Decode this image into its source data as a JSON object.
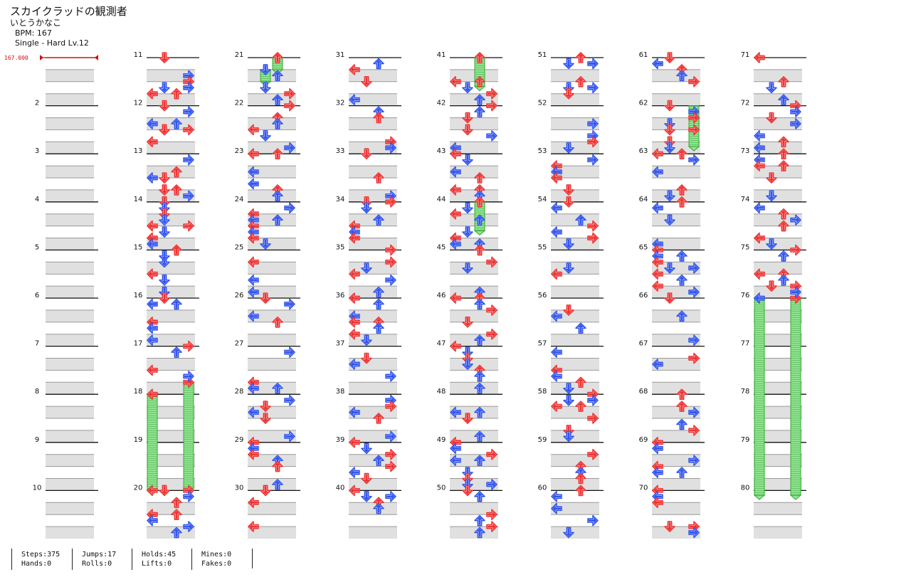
{
  "header": {
    "title": "スカイクラッドの観測者",
    "artist": "いとうかなこ",
    "bpm_text": "BPM: 167",
    "difficulty_text": "Single - Hard  Lv.12"
  },
  "bpm_marker": {
    "value": "167.000"
  },
  "colors": {
    "red_note": "#ee3333",
    "blue_note": "#3355ee",
    "hold_fill": "#88e088",
    "hold_border": "#33aa33",
    "bpm_marker": "#d01010"
  },
  "measure_numbers": [
    "2",
    "3",
    "4",
    "5",
    "6",
    "7",
    "8",
    "9",
    "10",
    "11",
    "12",
    "13",
    "14",
    "15",
    "16",
    "17",
    "18",
    "19",
    "20",
    "21",
    "22",
    "23",
    "24",
    "25",
    "26",
    "27",
    "28",
    "29",
    "30",
    "31",
    "32",
    "33",
    "34",
    "35",
    "36",
    "37",
    "38",
    "39",
    "40",
    "41",
    "42",
    "43",
    "44",
    "45",
    "46",
    "47",
    "48",
    "49",
    "50",
    "51",
    "52",
    "53",
    "54",
    "55",
    "56",
    "57",
    "58",
    "59",
    "60",
    "61",
    "62",
    "63",
    "64",
    "65",
    "66",
    "67",
    "68",
    "69",
    "70",
    "71",
    "72",
    "73",
    "74",
    "75",
    "76",
    "77",
    "78",
    "79",
    "80"
  ],
  "stats": [
    {
      "line1": "Steps:375",
      "line2": "Hands:0"
    },
    {
      "line1": "Jumps:17",
      "line2": "Rolls:0"
    },
    {
      "line1": "Holds:45",
      "line2": "Lifts:0"
    },
    {
      "line1": "Mines:0",
      "line2": "Fakes:0"
    }
  ],
  "chart_data": {
    "type": "table",
    "columns": [
      "left",
      "down",
      "up",
      "right"
    ],
    "notes": [
      {
        "measure": 13,
        "beat": 2,
        "lane": 0,
        "color": "blue"
      },
      {
        "measure": 13,
        "beat": 1.5,
        "lane": 2,
        "color": "red"
      },
      {
        "measure": 13,
        "beat": 3,
        "lane": 2,
        "color": "red"
      },
      {
        "measure": 13,
        "beat": 0.5,
        "lane": 3,
        "color": "blue"
      },
      {
        "measure": 12,
        "beat": 1.5,
        "lane": 0,
        "color": "blue"
      },
      {
        "measure": 12,
        "beat": 0,
        "lane": 1,
        "color": "red"
      },
      {
        "measure": 12,
        "beat": 2,
        "lane": 1,
        "color": "red"
      },
      {
        "measure": 12,
        "beat": 0.5,
        "lane": 3,
        "color": "blue"
      },
      {
        "measure": 14,
        "beat": 0,
        "lane": 1,
        "color": "blue"
      },
      {
        "measure": 14,
        "beat": 2,
        "lane": 3,
        "color": "red"
      },
      {
        "measure": 15,
        "beat": 0,
        "lane": 2,
        "color": "red"
      },
      {
        "measure": 15,
        "beat": 1,
        "lane": 1,
        "color": "blue"
      },
      {
        "measure": 18,
        "beat": 0,
        "lane": 0,
        "color": "red",
        "hold_end": 20
      },
      {
        "measure": 17,
        "beat": 3,
        "lane": 3,
        "color": "red",
        "hold_end": 19.95
      },
      {
        "measure": 20,
        "beat": 0,
        "lane": 0,
        "color": "red"
      },
      {
        "measure": 20,
        "beat": 0,
        "lane": 1,
        "color": "red"
      },
      {
        "measure": 20,
        "beat": 3,
        "lane": 3,
        "color": "blue"
      },
      {
        "measure": 20,
        "beat": 2,
        "lane": 2,
        "color": "red"
      },
      {
        "measure": 21,
        "beat": 0,
        "lane": 2,
        "color": "green",
        "hold_end": 21.25
      },
      {
        "measure": 21,
        "beat": 1,
        "lane": 1,
        "color": "blue",
        "hold_end": 21.5
      },
      {
        "measure": 44,
        "beat": 0,
        "lane": 2,
        "color": "green",
        "hold_end": 44.6
      },
      {
        "measure": 41,
        "beat": 0,
        "lane": 2,
        "color": "green",
        "hold_end": 41.6
      },
      {
        "measure": 62,
        "beat": 0,
        "lane": 3,
        "color": "green",
        "hold_end": 62.85
      },
      {
        "measure": 76,
        "beat": 0,
        "lane": 0,
        "color": "blue",
        "hold_end": 80.1
      },
      {
        "measure": 76,
        "beat": 0,
        "lane": 3,
        "color": "red",
        "hold_end": 80.1
      }
    ]
  }
}
